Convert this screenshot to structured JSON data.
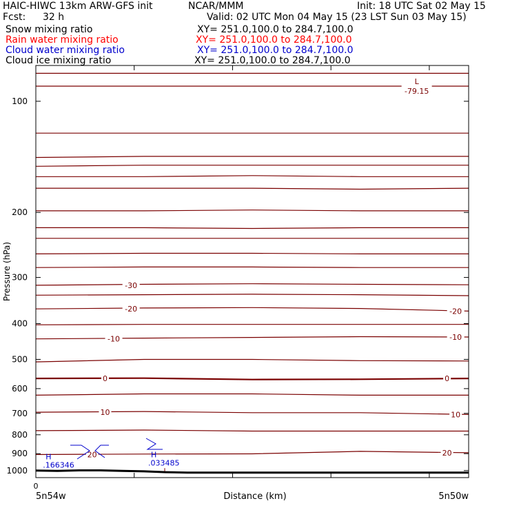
{
  "header": {
    "title_left": "HAIC-HIWC 13km ARW-GFS init",
    "title_center": "NCAR/MMM",
    "init": "Init: 18 UTC Sat 02 May 15",
    "fcst_label": "Fcst:",
    "fcst_value": "32 h",
    "valid": "Valid: 02 UTC Mon 04 May 15 (23 LST Sun 03 May 15)",
    "fields": [
      {
        "name": "Snow mixing ratio",
        "xy": "XY= 251.0,100.0 to 284.7,100.0",
        "color": "#000000"
      },
      {
        "name": "Rain water mixing ratio",
        "xy": "XY= 251.0,100.0 to 284.7,100.0",
        "color": "#ff0000"
      },
      {
        "name": "Cloud water mixing ratio",
        "xy": "XY= 251.0,100.0 to 284.7,100.0",
        "color": "#0000cc"
      },
      {
        "name": "Cloud ice mixing ratio",
        "xy": "XY= 251.0,100.0 to 284.7,100.0",
        "color": "#000000"
      }
    ]
  },
  "colors": {
    "isotherm": "#7a0000",
    "cloud_water": "#0000cc",
    "terrain": "#000000"
  },
  "chart_data": {
    "type": "line",
    "xlabel": "Distance (km)",
    "ylabel": "Pressure (hPa)",
    "x_start_label": "5n54w",
    "x_end_label": "5n50w",
    "x_origin_label": "0",
    "y_ticks": [
      100,
      200,
      300,
      400,
      500,
      600,
      700,
      800,
      900,
      1000
    ],
    "y_log": true,
    "ylim": [
      1045,
      80
    ],
    "xlim": [
      0,
      100
    ],
    "temperature_labels": [
      {
        "text": "-30",
        "x": 22,
        "p": 315
      },
      {
        "text": "-20",
        "x": 22,
        "p": 365
      },
      {
        "text": "-20",
        "x": 97,
        "p": 370
      },
      {
        "text": "-10",
        "x": 18,
        "p": 440
      },
      {
        "text": "-10",
        "x": 97,
        "p": 435
      },
      {
        "text": "0",
        "x": 16,
        "p": 563
      },
      {
        "text": "0",
        "x": 95,
        "p": 563
      },
      {
        "text": "10",
        "x": 16,
        "p": 695
      },
      {
        "text": "10",
        "x": 97,
        "p": 705
      },
      {
        "text": "20",
        "x": 13,
        "p": 905
      },
      {
        "text": "20",
        "x": 95,
        "p": 895
      }
    ],
    "low_marker": {
      "symbol": "L",
      "value": "-79.15",
      "x": 88,
      "p": 89
    },
    "cloud_water_highs": [
      {
        "symbol": "H",
        "value": ".166346",
        "x": 1,
        "p": 982
      },
      {
        "symbol": "H",
        "value": ".033485",
        "x": 18,
        "p": 970
      }
    ],
    "isotherms": [
      {
        "p": [
          84,
          84,
          84,
          84,
          84
        ]
      },
      {
        "p": [
          91,
          91,
          91,
          91,
          91
        ]
      },
      {
        "p": [
          122,
          122,
          122,
          122,
          122
        ]
      },
      {
        "p": [
          142,
          141,
          141,
          141,
          141
        ]
      },
      {
        "p": [
          150,
          149,
          149,
          149,
          149
        ]
      },
      {
        "p": [
          160,
          160,
          159,
          160,
          160
        ]
      },
      {
        "p": [
          172,
          172,
          172,
          173,
          172
        ]
      },
      {
        "p": [
          198,
          198,
          197,
          198,
          198
        ]
      },
      {
        "p": [
          220,
          220,
          221,
          220,
          220
        ]
      },
      {
        "p": [
          235,
          235,
          235,
          235,
          235
        ]
      },
      {
        "p": [
          259,
          258,
          258,
          259,
          259
        ]
      },
      {
        "p": [
          282,
          281,
          281,
          282,
          282
        ]
      },
      {
        "p": [
          315,
          313,
          312,
          313,
          314
        ]
      },
      {
        "p": [
          335,
          334,
          333,
          334,
          336
        ]
      },
      {
        "p": [
          365,
          363,
          362,
          364,
          370
        ]
      },
      {
        "p": [
          403,
          402,
          402,
          402,
          402
        ]
      },
      {
        "p": [
          440,
          438,
          436,
          434,
          435
        ]
      },
      {
        "p": [
          508,
          500,
          500,
          504,
          505
        ]
      },
      {
        "p": [
          563,
          562,
          567,
          566,
          563
        ]
      },
      {
        "p": [
          625,
          620,
          620,
          625,
          625
        ]
      },
      {
        "p": [
          695,
          692,
          697,
          697,
          705
        ]
      },
      {
        "p": [
          780,
          777,
          782,
          782,
          782
        ]
      },
      {
        "p": [
          905,
          902,
          901,
          887,
          895
        ]
      }
    ],
    "isotherm_x": [
      0,
      25,
      50,
      75,
      100
    ],
    "terrain": {
      "x": [
        0,
        5,
        10,
        15,
        20,
        25,
        30,
        35,
        40,
        45,
        50,
        60,
        70,
        80,
        90,
        100
      ],
      "p": [
        1000,
        1002,
        999,
        999,
        1002,
        1005,
        1010,
        1013,
        1013,
        1013,
        1013,
        1013,
        1013,
        1013,
        1013,
        1013
      ]
    }
  }
}
